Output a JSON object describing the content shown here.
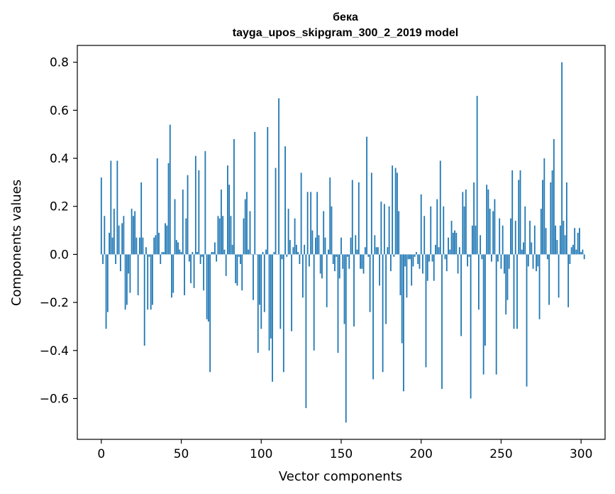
{
  "chart_data": {
    "type": "bar",
    "title": "бека",
    "subtitle": "tayga_upos_skipgram_300_2_2019 model",
    "xlabel": "Vector components",
    "ylabel": "Components values",
    "xlim": [
      -15,
      315
    ],
    "ylim": [
      -0.77,
      0.87
    ],
    "xticks": [
      0,
      50,
      100,
      150,
      200,
      250,
      300
    ],
    "xtick_labels": [
      "0",
      "50",
      "100",
      "150",
      "200",
      "250",
      "300"
    ],
    "yticks": [
      -0.6,
      -0.4,
      -0.2,
      0.0,
      0.2,
      0.4,
      0.6,
      0.8
    ],
    "ytick_labels": [
      "−0.6",
      "−0.4",
      "−0.2",
      "0.0",
      "0.2",
      "0.4",
      "0.6",
      "0.8"
    ],
    "grid": false,
    "bar_color": "#1f77b4",
    "x": "0..299",
    "values": [
      0.32,
      -0.04,
      0.16,
      -0.31,
      -0.24,
      0.09,
      0.39,
      0.07,
      0.19,
      -0.04,
      0.39,
      0.12,
      -0.07,
      0.13,
      0.16,
      -0.23,
      -0.21,
      -0.08,
      -0.16,
      0.19,
      0.16,
      0.18,
      0.07,
      -0.17,
      0.07,
      0.3,
      0.07,
      -0.38,
      0.03,
      -0.23,
      -0.01,
      -0.23,
      -0.21,
      0.07,
      0.08,
      0.4,
      0.09,
      -0.04,
      0.01,
      0.01,
      0.13,
      0.12,
      0.38,
      0.54,
      -0.18,
      -0.16,
      0.23,
      0.06,
      0.05,
      0.02,
      0.01,
      0.27,
      -0.17,
      0.15,
      0.33,
      -0.03,
      -0.12,
      0.01,
      -0.14,
      0.41,
      0.01,
      0.35,
      -0.04,
      -0.01,
      -0.15,
      0.43,
      -0.27,
      -0.28,
      -0.49,
      0.01,
      0.01,
      0.05,
      -0.03,
      0.16,
      0.15,
      0.27,
      0.16,
      0.02,
      -0.09,
      0.37,
      0.29,
      0.16,
      0.04,
      0.48,
      -0.12,
      -0.13,
      -0.01,
      -0.04,
      -0.15,
      0.15,
      0.23,
      0.26,
      0.02,
      0.18,
      0.0,
      -0.19,
      0.51,
      0.0,
      -0.41,
      -0.21,
      -0.31,
      0.01,
      -0.24,
      0.02,
      0.53,
      -0.4,
      -0.35,
      -0.53,
      0.01,
      0.36,
      0.0,
      0.65,
      -0.31,
      -0.02,
      -0.49,
      0.45,
      -0.01,
      0.19,
      0.06,
      -0.32,
      0.03,
      0.15,
      0.04,
      0.01,
      -0.04,
      0.34,
      -0.18,
      0.04,
      -0.64,
      0.26,
      -0.05,
      0.26,
      0.1,
      -0.4,
      0.07,
      0.26,
      0.08,
      -0.08,
      -0.1,
      0.18,
      0.07,
      -0.22,
      0.02,
      0.32,
      0.2,
      -0.04,
      -0.07,
      -0.01,
      -0.41,
      -0.1,
      0.07,
      -0.06,
      -0.29,
      -0.7,
      -0.01,
      -0.06,
      0.07,
      0.31,
      -0.3,
      0.08,
      0.02,
      0.3,
      -0.06,
      -0.06,
      -0.08,
      0.03,
      0.49,
      -0.01,
      -0.24,
      0.34,
      -0.52,
      0.08,
      0.03,
      0.03,
      -0.13,
      0.22,
      -0.49,
      0.21,
      -0.29,
      0.03,
      0.2,
      -0.07,
      0.37,
      -0.01,
      0.36,
      0.34,
      0.18,
      -0.17,
      -0.37,
      -0.57,
      -0.05,
      -0.18,
      -0.02,
      -0.02,
      -0.13,
      -0.05,
      -0.01,
      0.01,
      -0.04,
      -0.06,
      0.25,
      -0.08,
      0.16,
      -0.47,
      -0.11,
      -0.03,
      0.2,
      -0.03,
      -0.11,
      0.04,
      0.23,
      0.03,
      0.39,
      -0.56,
      0.2,
      -0.02,
      -0.07,
      0.07,
      0.02,
      0.14,
      0.09,
      0.1,
      0.09,
      -0.08,
      0.03,
      -0.34,
      0.26,
      0.2,
      0.27,
      -0.05,
      -0.01,
      -0.6,
      0.12,
      0.3,
      0.12,
      0.66,
      -0.23,
      0.08,
      -0.02,
      -0.5,
      -0.38,
      0.29,
      0.27,
      0.19,
      -0.03,
      0.18,
      0.23,
      -0.5,
      -0.03,
      0.15,
      -0.06,
      0.12,
      -0.08,
      -0.25,
      -0.19,
      -0.06,
      0.15,
      0.35,
      -0.31,
      0.14,
      -0.31,
      0.31,
      0.35,
      0.02,
      0.05,
      0.2,
      -0.55,
      -0.05,
      0.14,
      0.05,
      -0.06,
      0.12,
      -0.07,
      -0.05,
      -0.27,
      0.19,
      0.31,
      0.4,
      0.11,
      -0.02,
      -0.21,
      0.3,
      0.35,
      0.48,
      0.12,
      0.06,
      -0.18,
      0.12,
      0.8,
      0.14,
      0.08,
      0.3,
      -0.22,
      -0.04,
      0.03,
      0.04,
      0.11,
      0.02,
      0.09,
      0.11,
      0.01,
      0.02,
      -0.02
    ]
  }
}
